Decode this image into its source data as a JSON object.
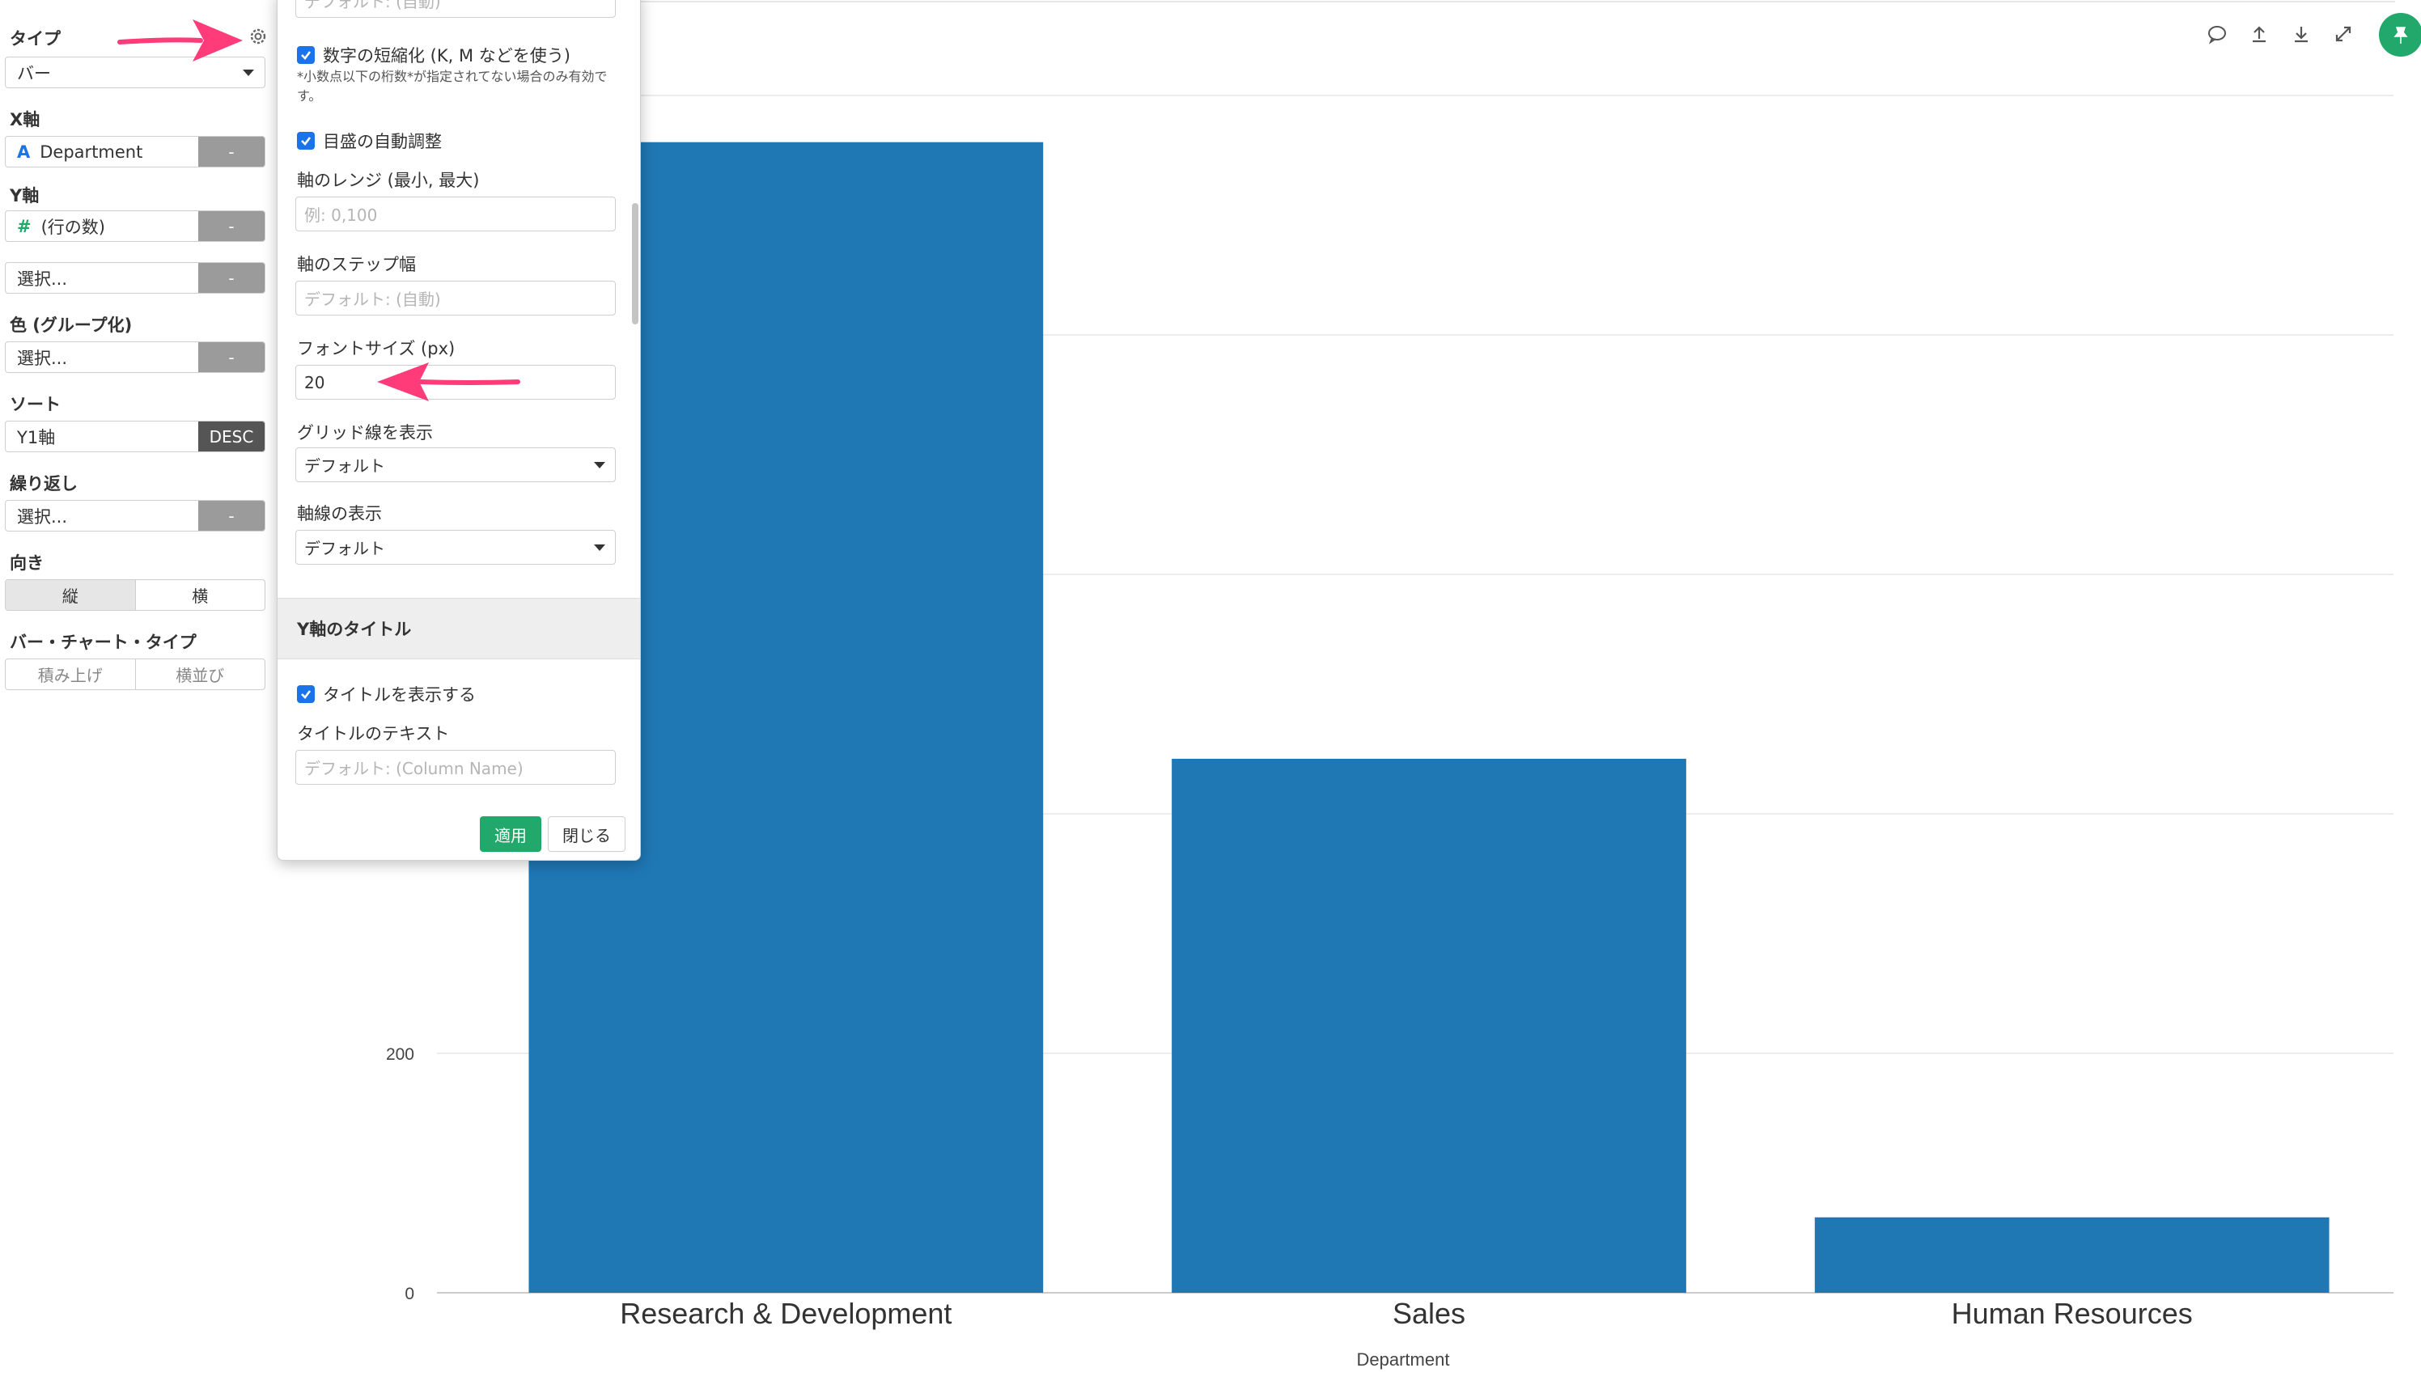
{
  "left_panel": {
    "type_label": "タイプ",
    "type_value": "バー",
    "x_axis_label": "X軸",
    "x_axis_value": "Department",
    "x_axis_icon": "A",
    "y_axis_label": "Y軸",
    "y_axis_value": "(行の数)",
    "y_axis_icon": "#",
    "y2_placeholder": "選択...",
    "color_label": "色 (グループ化)",
    "color_value": "選択...",
    "sort_label": "ソート",
    "sort_value": "Y1軸",
    "sort_order": "DESC",
    "wrap_label": "繰り返し",
    "wrap_value": "選択...",
    "orientation_label": "向き",
    "orientation_options": [
      "縦",
      "横"
    ],
    "bar_type_label": "バー・チャート・タイプ",
    "bar_type_options": [
      "積み上げ",
      "横並び"
    ],
    "minus_label": "-"
  },
  "popup": {
    "top_field_placeholder": "デフォルト: (自動)",
    "abbrev_label": "数字の短縮化 (K, M などを使う)",
    "abbrev_note": "*小数点以下の桁数*が指定されてない場合のみ有効です。",
    "auto_scale_label": "目盛の自動調整",
    "range_label": "軸のレンジ (最小, 最大)",
    "range_placeholder": "例: 0,100",
    "step_label": "軸のステップ幅",
    "step_placeholder": "デフォルト: (自動)",
    "font_size_label": "フォントサイズ (px)",
    "font_size_value": "20",
    "grid_label": "グリッド線を表示",
    "grid_value": "デフォルト",
    "axis_line_label": "軸線の表示",
    "axis_line_value": "デフォルト",
    "y_title_section": "Y軸のタイトル",
    "show_title_label": "タイトルを表示する",
    "title_text_label": "タイトルのテキスト",
    "title_text_placeholder": "デフォルト: (Column Name)",
    "apply_button": "適用",
    "close_button": "閉じる"
  },
  "toolbar": {
    "icons": [
      "comment-icon",
      "upload-icon",
      "download-icon",
      "expand-icon",
      "pin-icon"
    ]
  },
  "colors": {
    "bar": "#1f77b4",
    "accent_green": "#23a86b",
    "checkbox_blue": "#1a73e8",
    "annotation_arrow": "#ff3b7a"
  },
  "chart_data": {
    "type": "bar",
    "categories": [
      "Research & Development",
      "Sales",
      "Human Resources"
    ],
    "values": [
      961,
      446,
      63
    ],
    "xlabel": "Department",
    "ylabel": "",
    "ylim": [
      0,
      1000
    ],
    "yticks": [
      0,
      200
    ],
    "grid": true
  }
}
